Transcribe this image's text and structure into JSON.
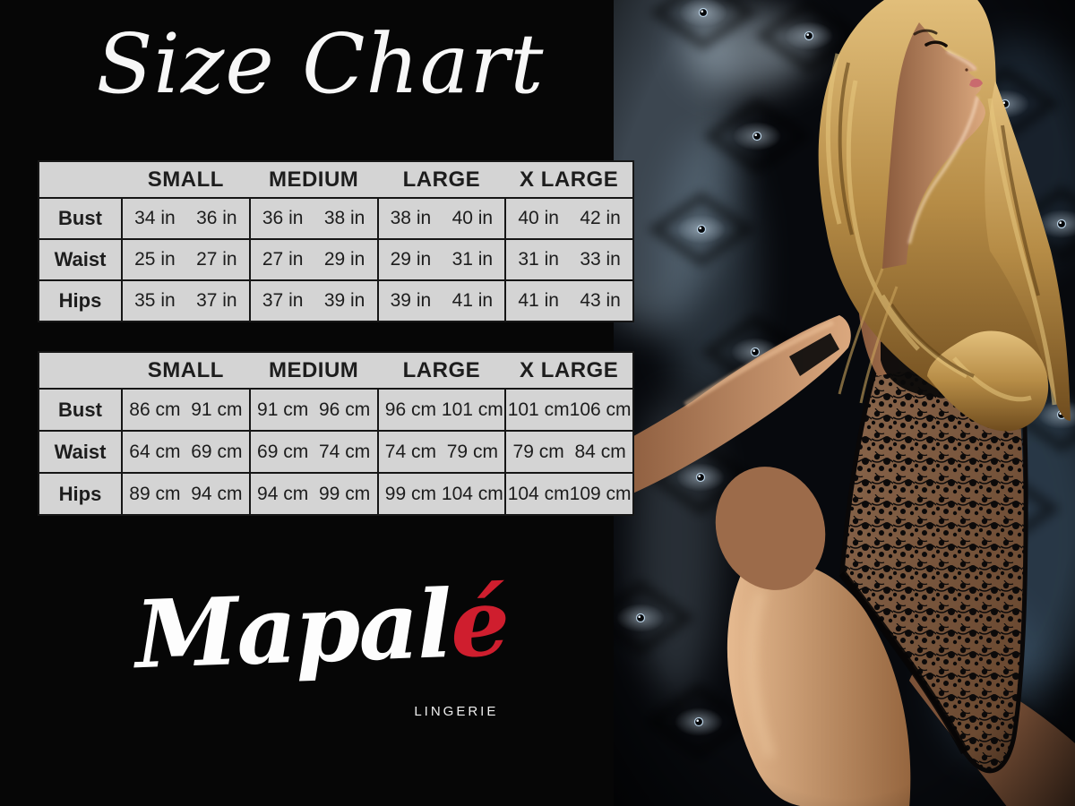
{
  "title": "Size Chart",
  "brand": {
    "name_prefix": "Mapal",
    "name_accent": "é",
    "tagline": "LINGERIE"
  },
  "colors": {
    "background": "#060606",
    "accent_red": "#cf1e2e",
    "table_bg": "#d4d4d4",
    "table_border": "#161616",
    "table_text": "#1d1d1d",
    "title_color": "#f7f7f7"
  },
  "tables": [
    {
      "id": "inches",
      "unit": "in",
      "columns": [
        "SMALL",
        "MEDIUM",
        "LARGE",
        "X LARGE"
      ],
      "rows": [
        {
          "label": "Bust",
          "values": [
            [
              "34 in",
              "36 in"
            ],
            [
              "36 in",
              "38 in"
            ],
            [
              "38 in",
              "40 in"
            ],
            [
              "40 in",
              "42 in"
            ]
          ]
        },
        {
          "label": "Waist",
          "values": [
            [
              "25 in",
              "27 in"
            ],
            [
              "27 in",
              "29 in"
            ],
            [
              "29 in",
              "31 in"
            ],
            [
              "31 in",
              "33 in"
            ]
          ]
        },
        {
          "label": "Hips",
          "values": [
            [
              "35 in",
              "37 in"
            ],
            [
              "37 in",
              "39 in"
            ],
            [
              "39 in",
              "41 in"
            ],
            [
              "41 in",
              "43 in"
            ]
          ]
        }
      ]
    },
    {
      "id": "centimeters",
      "unit": "cm",
      "columns": [
        "SMALL",
        "MEDIUM",
        "LARGE",
        "X LARGE"
      ],
      "rows": [
        {
          "label": "Bust",
          "values": [
            [
              "86 cm",
              "91 cm"
            ],
            [
              "91 cm",
              "96 cm"
            ],
            [
              "96 cm",
              "101 cm"
            ],
            [
              "101 cm",
              "106 cm"
            ]
          ]
        },
        {
          "label": "Waist",
          "values": [
            [
              "64 cm",
              "69 cm"
            ],
            [
              "69 cm",
              "74 cm"
            ],
            [
              "74 cm",
              "79 cm"
            ],
            [
              "79 cm",
              "84 cm"
            ]
          ]
        },
        {
          "label": "Hips",
          "values": [
            [
              "89 cm",
              "94 cm"
            ],
            [
              "94 cm",
              "99 cm"
            ],
            [
              "99 cm",
              "104 cm"
            ],
            [
              "104 cm",
              "109 cm"
            ]
          ]
        }
      ]
    }
  ],
  "photo": {
    "alt": "Model with curly blonde hair, head tilted back, wearing a black lace bodysuit against dark tufted upholstery"
  }
}
